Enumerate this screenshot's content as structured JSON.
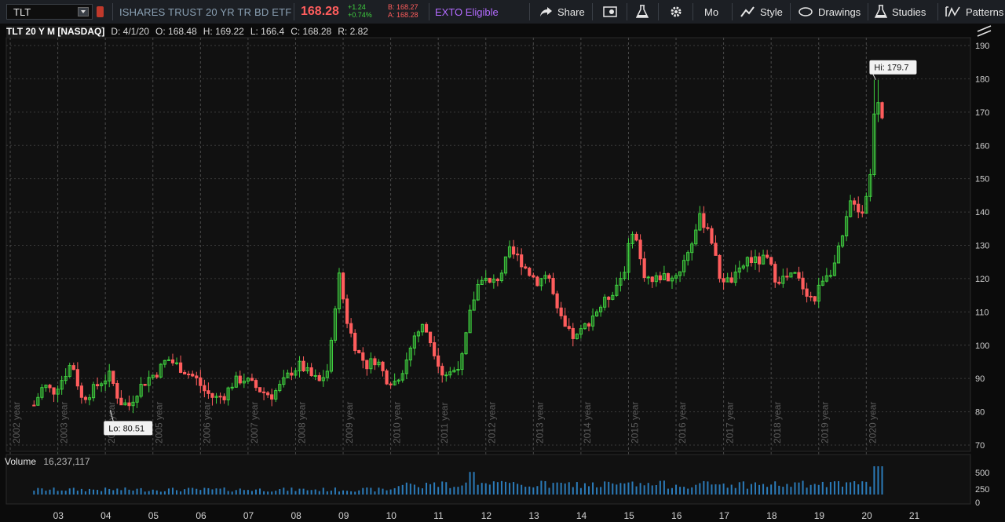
{
  "toolbar": {
    "symbol": "TLT",
    "description": "ISHARES TRUST 20 YR TR BD ETF",
    "last": "168.28",
    "change": "+1.24",
    "change_pct": "+0.74%",
    "bid": "B: 168.27",
    "ask": "A: 168.28",
    "exto": "EXTO Eligible",
    "share": "Share",
    "mo": "Mo",
    "style": "Style",
    "drawings": "Drawings",
    "studies": "Studies",
    "patterns": "Patterns"
  },
  "chart": {
    "label": "TLT 20 Y M [NASDAQ]",
    "date": "D: 4/1/20",
    "open": "O: 168.48",
    "high": "H: 169.22",
    "low": "L: 166.4",
    "close": "C: 168.28",
    "range": "R: 2.82",
    "hi_label": "Hi: 179.7",
    "lo_label": "Lo: 80.51"
  },
  "volume": {
    "label": "Volume",
    "value": "16,237,117"
  },
  "colors": {
    "up": "#3fd13f",
    "down": "#ff5d5d",
    "volume": "#2b7bb9",
    "grid": "#3a3a3a"
  },
  "chart_data": {
    "type": "candlestick",
    "ylim": [
      70,
      190
    ],
    "yticks": [
      70,
      80,
      90,
      100,
      110,
      120,
      130,
      140,
      150,
      160,
      170,
      180,
      190
    ],
    "year_labels": [
      "2002 year",
      "2003 year",
      "2004 year",
      "2005 year",
      "2006 year",
      "2007 year",
      "2008 year",
      "2009 year",
      "2010 year",
      "2011 year",
      "2012 year",
      "2013 year",
      "2014 year",
      "2015 year",
      "2016 year",
      "2017 year",
      "2018 year",
      "2019 year",
      "2020 year"
    ],
    "xaxis_labels": [
      "03",
      "04",
      "05",
      "06",
      "07",
      "08",
      "09",
      "10",
      "11",
      "12",
      "13",
      "14",
      "15",
      "16",
      "17",
      "18",
      "19",
      "20",
      "21"
    ],
    "volume_ticks": [
      "500",
      "250",
      "0"
    ],
    "close_path": [
      [
        2002.5,
        82
      ],
      [
        2002.7,
        88
      ],
      [
        2002.9,
        86
      ],
      [
        2003.1,
        90
      ],
      [
        2003.3,
        95
      ],
      [
        2003.5,
        84
      ],
      [
        2003.7,
        86
      ],
      [
        2003.9,
        89
      ],
      [
        2004.1,
        91
      ],
      [
        2004.3,
        83
      ],
      [
        2004.5,
        82
      ],
      [
        2004.7,
        87
      ],
      [
        2004.9,
        90
      ],
      [
        2005.1,
        92
      ],
      [
        2005.3,
        96
      ],
      [
        2005.5,
        94
      ],
      [
        2005.7,
        92
      ],
      [
        2005.9,
        90
      ],
      [
        2006.1,
        86
      ],
      [
        2006.3,
        84
      ],
      [
        2006.5,
        85
      ],
      [
        2006.7,
        89
      ],
      [
        2006.9,
        90
      ],
      [
        2007.1,
        88
      ],
      [
        2007.3,
        86
      ],
      [
        2007.5,
        85
      ],
      [
        2007.7,
        88
      ],
      [
        2007.9,
        92
      ],
      [
        2008.1,
        94
      ],
      [
        2008.3,
        91
      ],
      [
        2008.5,
        89
      ],
      [
        2008.7,
        93
      ],
      [
        2008.9,
        122
      ],
      [
        2009.1,
        106
      ],
      [
        2009.3,
        98
      ],
      [
        2009.5,
        94
      ],
      [
        2009.7,
        96
      ],
      [
        2009.9,
        90
      ],
      [
        2010.1,
        89
      ],
      [
        2010.3,
        94
      ],
      [
        2010.5,
        103
      ],
      [
        2010.7,
        106
      ],
      [
        2010.9,
        99
      ],
      [
        2011.1,
        91
      ],
      [
        2011.3,
        92
      ],
      [
        2011.5,
        96
      ],
      [
        2011.7,
        112
      ],
      [
        2011.9,
        121
      ],
      [
        2012.1,
        118
      ],
      [
        2012.3,
        121
      ],
      [
        2012.5,
        128
      ],
      [
        2012.7,
        126
      ],
      [
        2012.9,
        122
      ],
      [
        2013.1,
        119
      ],
      [
        2013.3,
        122
      ],
      [
        2013.5,
        110
      ],
      [
        2013.7,
        104
      ],
      [
        2013.9,
        102
      ],
      [
        2014.1,
        106
      ],
      [
        2014.3,
        110
      ],
      [
        2014.5,
        113
      ],
      [
        2014.7,
        117
      ],
      [
        2014.9,
        122
      ],
      [
        2015.1,
        136
      ],
      [
        2015.3,
        122
      ],
      [
        2015.5,
        119
      ],
      [
        2015.7,
        121
      ],
      [
        2015.9,
        120
      ],
      [
        2016.1,
        123
      ],
      [
        2016.3,
        130
      ],
      [
        2016.5,
        138
      ],
      [
        2016.7,
        135
      ],
      [
        2016.9,
        121
      ],
      [
        2017.1,
        119
      ],
      [
        2017.3,
        121
      ],
      [
        2017.5,
        126
      ],
      [
        2017.7,
        125
      ],
      [
        2017.9,
        126
      ],
      [
        2018.1,
        120
      ],
      [
        2018.3,
        120
      ],
      [
        2018.5,
        121
      ],
      [
        2018.7,
        117
      ],
      [
        2018.9,
        113
      ],
      [
        2019.1,
        121
      ],
      [
        2019.3,
        123
      ],
      [
        2019.5,
        132
      ],
      [
        2019.7,
        145
      ],
      [
        2019.9,
        139
      ],
      [
        2020.1,
        152
      ],
      [
        2020.2,
        179.7
      ],
      [
        2020.3,
        168.28
      ]
    ]
  }
}
